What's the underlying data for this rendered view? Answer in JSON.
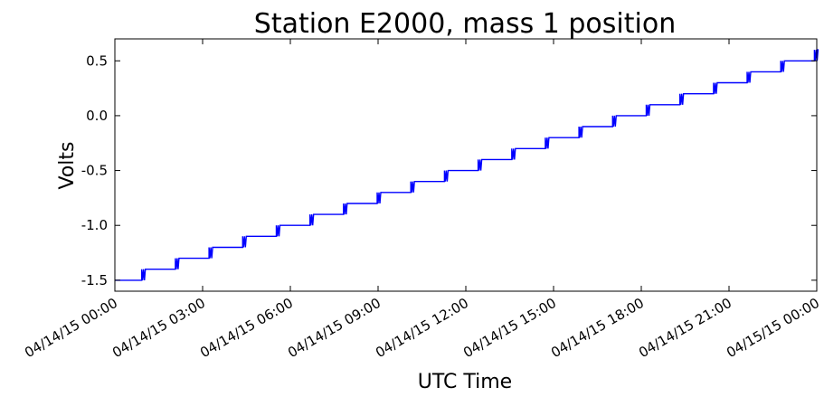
{
  "chart_data": {
    "type": "line",
    "title": "Station E2000, mass 1 position",
    "xlabel": "UTC Time",
    "ylabel": "Volts",
    "xlim_hours": [
      0,
      24
    ],
    "ylim": [
      -1.6,
      0.7
    ],
    "x_ticks": [
      {
        "hour": 0,
        "label": "04/14/15 00:00"
      },
      {
        "hour": 3,
        "label": "04/14/15 03:00"
      },
      {
        "hour": 6,
        "label": "04/14/15 06:00"
      },
      {
        "hour": 9,
        "label": "04/14/15 09:00"
      },
      {
        "hour": 12,
        "label": "04/14/15 12:00"
      },
      {
        "hour": 15,
        "label": "04/14/15 15:00"
      },
      {
        "hour": 18,
        "label": "04/14/15 18:00"
      },
      {
        "hour": 21,
        "label": "04/14/15 21:00"
      },
      {
        "hour": 24,
        "label": "04/15/15 00:00"
      }
    ],
    "y_ticks": [
      {
        "value": 0.5,
        "label": "0.5"
      },
      {
        "value": 0.0,
        "label": "0.0"
      },
      {
        "value": -0.5,
        "label": "-0.5"
      },
      {
        "value": -1.0,
        "label": "-1.0"
      },
      {
        "value": -1.5,
        "label": "-1.5"
      }
    ],
    "series": [
      {
        "color": "#0000ff",
        "step_times_hours": [
          0.92,
          2.07,
          3.22,
          4.37,
          5.52,
          6.67,
          7.82,
          8.97,
          10.12,
          11.27,
          12.42,
          13.57,
          14.72,
          15.87,
          17.02,
          18.17,
          19.32,
          20.47,
          21.62,
          22.77,
          23.92
        ],
        "start_value": -1.5,
        "step_size": 0.1
      }
    ],
    "grid": false,
    "legend": "none"
  }
}
